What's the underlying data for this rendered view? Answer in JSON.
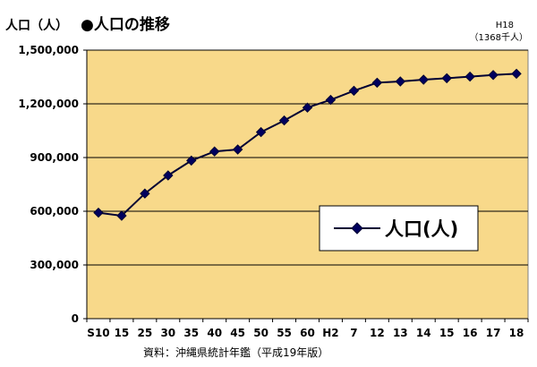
{
  "chart_data": {
    "type": "line",
    "title": "●人口の推移",
    "ylabel": "人口（人）",
    "source": "資料：沖縄県統計年鑑（平成19年版）",
    "annotation": {
      "line1": "H18",
      "line2": "（1368千人）"
    },
    "categories": [
      "S10",
      "15",
      "25",
      "30",
      "35",
      "40",
      "45",
      "50",
      "55",
      "60",
      "H2",
      "7",
      "12",
      "13",
      "14",
      "15",
      "16",
      "17",
      "18"
    ],
    "series": [
      {
        "name": "人口(人)",
        "values": [
          592000,
          575000,
          699000,
          800000,
          883000,
          934000,
          945000,
          1042000,
          1107000,
          1179000,
          1222000,
          1273000,
          1318000,
          1325000,
          1335000,
          1343000,
          1352000,
          1361000,
          1368000
        ]
      }
    ],
    "ylim": [
      0,
      1500000
    ],
    "yticks": [
      0,
      300000,
      600000,
      900000,
      1200000,
      1500000
    ],
    "ytick_labels": [
      "0",
      "300,000",
      "600,000",
      "900,000",
      "1,200,000",
      "1,500,000"
    ],
    "grid": true,
    "legend": "center-right",
    "colors": {
      "plot_bg": "#F8D98A",
      "line": "#000033",
      "marker": "#00005E",
      "grid": "#000000"
    }
  }
}
